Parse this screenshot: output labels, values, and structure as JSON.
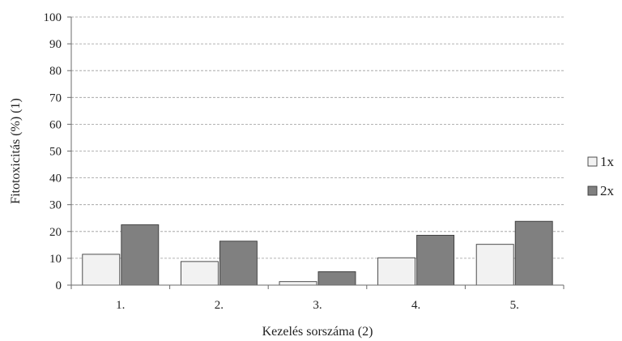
{
  "chart_data": {
    "type": "bar",
    "categories": [
      "1.",
      "2.",
      "3.",
      "4.",
      "5."
    ],
    "series": [
      {
        "name": "1x",
        "values": [
          11.5,
          8.8,
          1.3,
          10.2,
          15.2
        ],
        "color": "#f2f2f2"
      },
      {
        "name": "2x",
        "values": [
          22.5,
          16.4,
          5.0,
          18.6,
          23.8
        ],
        "color": "#808080"
      }
    ],
    "title": "",
    "xlabel": "Kezelés sorszáma (2)",
    "ylabel": "Fitotoxicitás (%) (1)",
    "ylim": [
      0,
      100
    ],
    "yticks": [
      0,
      10,
      20,
      30,
      40,
      50,
      60,
      70,
      80,
      90,
      100
    ],
    "grid": true,
    "grid_style": "dashed",
    "legend_position": "right"
  }
}
